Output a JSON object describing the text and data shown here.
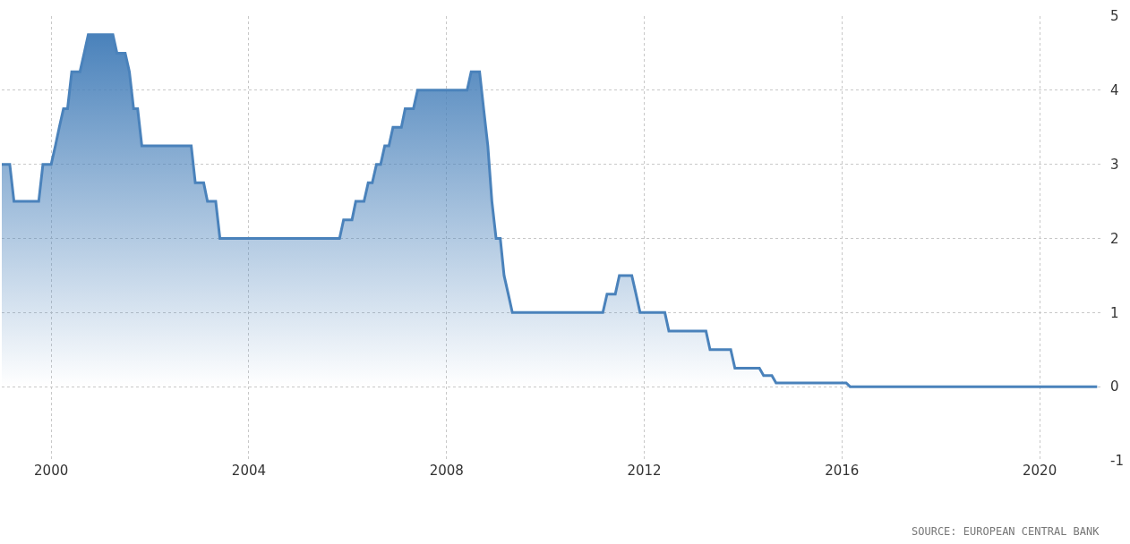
{
  "chart_data": {
    "type": "area",
    "color": "#4a82bb",
    "x": [
      "1999-01",
      "1999-03",
      "1999-04",
      "1999-10",
      "1999-11",
      "2000-01",
      "2000-02",
      "2000-03",
      "2000-04",
      "2000-05",
      "2000-06",
      "2000-08",
      "2000-09",
      "2000-10",
      "2001-04",
      "2001-05",
      "2001-07",
      "2001-08",
      "2001-09",
      "2001-10",
      "2001-11",
      "2002-11",
      "2002-12",
      "2003-02",
      "2003-03",
      "2003-05",
      "2003-06",
      "2005-11",
      "2005-12",
      "2006-02",
      "2006-03",
      "2006-05",
      "2006-06",
      "2006-07",
      "2006-08",
      "2006-09",
      "2006-10",
      "2006-11",
      "2006-12",
      "2007-02",
      "2007-03",
      "2007-05",
      "2007-06",
      "2008-06",
      "2008-07",
      "2008-09",
      "2008-10",
      "2008-11",
      "2008-12",
      "2009-01",
      "2009-02",
      "2009-03",
      "2009-04",
      "2009-05",
      "2011-03",
      "2011-04",
      "2011-06",
      "2011-07",
      "2011-10",
      "2011-11",
      "2011-12",
      "2012-06",
      "2012-07",
      "2013-04",
      "2013-05",
      "2013-10",
      "2013-11",
      "2014-05",
      "2014-06",
      "2014-08",
      "2014-09",
      "2016-02",
      "2016-03",
      "2021-03"
    ],
    "values": [
      3.0,
      3.0,
      2.5,
      2.5,
      3.0,
      3.0,
      3.25,
      3.5,
      3.75,
      3.75,
      4.25,
      4.25,
      4.5,
      4.75,
      4.75,
      4.5,
      4.5,
      4.25,
      3.75,
      3.75,
      3.25,
      3.25,
      2.75,
      2.75,
      2.5,
      2.5,
      2.0,
      2.0,
      2.25,
      2.25,
      2.5,
      2.5,
      2.75,
      2.75,
      3.0,
      3.0,
      3.25,
      3.25,
      3.5,
      3.5,
      3.75,
      3.75,
      4.0,
      4.0,
      4.25,
      4.25,
      3.75,
      3.25,
      2.5,
      2.0,
      2.0,
      1.5,
      1.25,
      1.0,
      1.0,
      1.25,
      1.25,
      1.5,
      1.5,
      1.25,
      1.0,
      1.0,
      0.75,
      0.75,
      0.5,
      0.5,
      0.25,
      0.25,
      0.15,
      0.15,
      0.05,
      0.05,
      0,
      0
    ],
    "xlim": [
      "1999-01",
      "2021-04"
    ],
    "xticks": [
      "2000",
      "2004",
      "2008",
      "2012",
      "2016",
      "2020"
    ],
    "ylim": [
      -1,
      5
    ],
    "yticks": [
      -1,
      0,
      1,
      2,
      3,
      4,
      5
    ],
    "grid": true,
    "annotations": [
      "SOURCE: EUROPEAN CENTRAL BANK"
    ]
  }
}
